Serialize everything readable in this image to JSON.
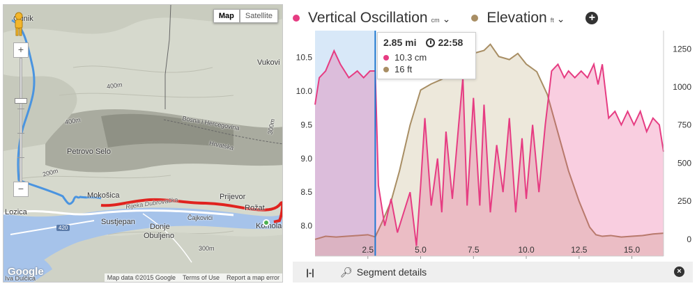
{
  "map": {
    "type_buttons": [
      "Map",
      "Satellite"
    ],
    "active_type": "Map",
    "zoom_in": "+",
    "zoom_out": "−",
    "places": [
      {
        "name": "Gunik",
        "cls": ""
      },
      {
        "name": "Vukovi",
        "cls": ""
      },
      {
        "name": "Petrovo Selo",
        "cls": ""
      },
      {
        "name": "Bosna i Hercegovina",
        "cls": "small"
      },
      {
        "name": "Hrvatska",
        "cls": "small"
      },
      {
        "name": "Mokošica",
        "cls": ""
      },
      {
        "name": "Prijevor",
        "cls": ""
      },
      {
        "name": "Rožat",
        "cls": ""
      },
      {
        "name": "Lozica",
        "cls": ""
      },
      {
        "name": "Sustjepan",
        "cls": ""
      },
      {
        "name": "Donje",
        "cls": ""
      },
      {
        "name": "Obuljeno",
        "cls": ""
      },
      {
        "name": "Čajkovići",
        "cls": "small"
      },
      {
        "name": "Rijeka Dubrovačka",
        "cls": "road"
      },
      {
        "name": "Komolac",
        "cls": ""
      },
      {
        "name": "Iva Dulčica",
        "cls": "small"
      },
      {
        "name": "400m",
        "cls": "small"
      },
      {
        "name": "400m",
        "cls": "small"
      },
      {
        "name": "300m",
        "cls": "small"
      },
      {
        "name": "200m",
        "cls": "small"
      },
      {
        "name": "300m",
        "cls": "small"
      }
    ],
    "highway": "420",
    "logo": "Google",
    "footer": [
      "Map data ©2015 Google",
      "Terms of Use",
      "Report a map error"
    ]
  },
  "header": {
    "metric1": {
      "name": "Vertical Oscillation",
      "unit": "cm",
      "color": "#e63c82"
    },
    "metric2": {
      "name": "Elevation",
      "unit": "ft",
      "color": "#a88e64"
    },
    "add_label": "+"
  },
  "tooltip": {
    "distance": "2.85 mi",
    "time": "22:58",
    "vo_value": "10.3 cm",
    "elev_value": "16 ft"
  },
  "segment_bar": {
    "range_icon": "|-|",
    "label": "Segment details",
    "close": "×"
  },
  "chart_data": {
    "type": "area",
    "x_ticks": [
      2.5,
      5.0,
      7.5,
      10.0,
      12.5,
      15.0
    ],
    "x_tick_labels": [
      "2.5",
      "5.0",
      "7.5",
      "10.0",
      "12.5",
      "15.0"
    ],
    "xlim": [
      0,
      16.5
    ],
    "y_left_ticks": [
      "10.5",
      "10.0",
      "9.5",
      "9.0",
      "8.5",
      "8.0"
    ],
    "y_left_values": [
      10.5,
      10.0,
      9.5,
      9.0,
      8.5,
      8.0
    ],
    "ylim_left": [
      7.55,
      10.9
    ],
    "y_right_ticks": [
      "1250",
      "1000",
      "750",
      "500",
      "250",
      "0"
    ],
    "y_right_values": [
      1250,
      1000,
      750,
      500,
      250,
      0
    ],
    "ylim_right": [
      -110,
      1370
    ],
    "selection": [
      0,
      2.85
    ],
    "series": [
      {
        "name": "Vertical Oscillation",
        "axis": "left",
        "color": "#e63c82",
        "x": [
          0,
          0.2,
          0.5,
          0.9,
          1.2,
          1.6,
          2.0,
          2.3,
          2.6,
          2.85,
          3.0,
          3.3,
          3.6,
          3.9,
          4.2,
          4.5,
          4.8,
          5.0,
          5.2,
          5.5,
          5.8,
          6.0,
          6.2,
          6.5,
          6.8,
          7.0,
          7.2,
          7.5,
          7.8,
          8.0,
          8.3,
          8.6,
          8.9,
          9.2,
          9.5,
          9.8,
          10.0,
          10.3,
          10.6,
          10.9,
          11.2,
          11.5,
          11.8,
          12.0,
          12.3,
          12.6,
          12.9,
          13.2,
          13.4,
          13.6,
          13.9,
          14.2,
          14.5,
          14.8,
          15.1,
          15.4,
          15.7,
          16.0,
          16.3,
          16.5
        ],
        "y": [
          9.8,
          10.2,
          10.3,
          10.6,
          10.4,
          10.2,
          10.3,
          10.2,
          10.3,
          10.3,
          8.6,
          8.0,
          8.4,
          7.9,
          8.2,
          8.5,
          7.7,
          8.6,
          9.6,
          8.3,
          9.0,
          8.2,
          9.4,
          8.4,
          9.5,
          10.2,
          8.3,
          9.9,
          8.3,
          9.8,
          8.2,
          9.2,
          8.5,
          9.6,
          8.2,
          9.3,
          8.4,
          9.5,
          8.5,
          9.5,
          10.3,
          10.4,
          10.2,
          10.3,
          10.2,
          10.3,
          10.2,
          10.4,
          10.1,
          10.4,
          9.6,
          9.7,
          9.5,
          9.7,
          9.5,
          9.7,
          9.4,
          9.6,
          9.5,
          9.1
        ]
      },
      {
        "name": "Elevation",
        "axis": "right",
        "color": "#a88e64",
        "x": [
          0,
          0.5,
          1.0,
          1.5,
          2.0,
          2.5,
          2.85,
          3.2,
          3.6,
          4.0,
          4.5,
          5.0,
          5.5,
          6.0,
          6.5,
          7.0,
          7.5,
          8.0,
          8.3,
          8.7,
          9.2,
          9.6,
          10.0,
          10.5,
          11.0,
          11.5,
          12.0,
          12.5,
          13.0,
          13.3,
          13.6,
          14.0,
          14.5,
          15.0,
          15.5,
          16.0,
          16.5
        ],
        "y": [
          0,
          20,
          15,
          20,
          25,
          30,
          16,
          120,
          250,
          450,
          750,
          980,
          1020,
          1050,
          1100,
          1180,
          1220,
          1240,
          1280,
          1200,
          1180,
          1220,
          1150,
          1100,
          950,
          700,
          450,
          250,
          80,
          30,
          20,
          25,
          15,
          20,
          25,
          35,
          40
        ]
      }
    ]
  }
}
